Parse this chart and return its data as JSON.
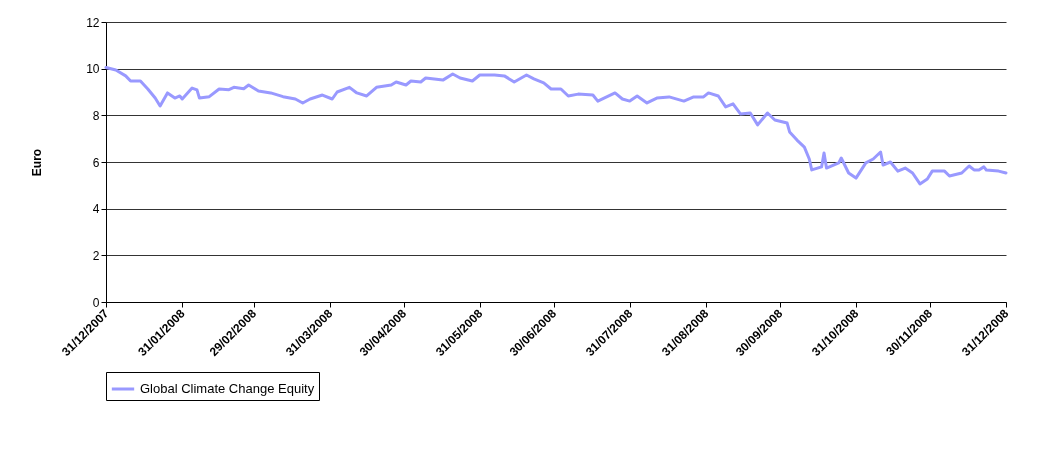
{
  "chart_data": {
    "type": "line",
    "ylabel": "Euro",
    "legend": "bottom",
    "grid": "y",
    "line_style": "solid",
    "xlim": [
      "2007-12-31",
      "2008-12-31"
    ],
    "xticks": [
      {
        "value": "2007-12-31",
        "label": "31/12/2007"
      },
      {
        "value": "2008-01-31",
        "label": "31/01/2008"
      },
      {
        "value": "2008-02-29",
        "label": "29/02/2008"
      },
      {
        "value": "2008-03-31",
        "label": "31/03/2008"
      },
      {
        "value": "2008-04-30",
        "label": "30/04/2008"
      },
      {
        "value": "2008-05-31",
        "label": "31/05/2008"
      },
      {
        "value": "2008-06-30",
        "label": "30/06/2008"
      },
      {
        "value": "2008-07-31",
        "label": "31/07/2008"
      },
      {
        "value": "2008-08-31",
        "label": "31/08/2008"
      },
      {
        "value": "2008-09-30",
        "label": "30/09/2008"
      },
      {
        "value": "2008-10-31",
        "label": "31/10/2008"
      },
      {
        "value": "2008-11-30",
        "label": "30/11/2008"
      },
      {
        "value": "2008-12-31",
        "label": "31/12/2008"
      }
    ],
    "ylim": [
      0,
      12
    ],
    "yticks": [
      0,
      2,
      4,
      6,
      8,
      10,
      12
    ],
    "x": [
      "2007-12-31",
      "2008-01-04",
      "2008-01-08",
      "2008-01-10",
      "2008-01-14",
      "2008-01-17",
      "2008-01-20",
      "2008-01-22",
      "2008-01-25",
      "2008-01-28",
      "2008-01-30",
      "2008-01-31",
      "2008-02-04",
      "2008-02-06",
      "2008-02-07",
      "2008-02-11",
      "2008-02-15",
      "2008-02-19",
      "2008-02-21",
      "2008-02-25",
      "2008-02-27",
      "2008-03-02",
      "2008-03-07",
      "2008-03-12",
      "2008-03-17",
      "2008-03-20",
      "2008-03-23",
      "2008-03-28",
      "2008-04-01",
      "2008-04-03",
      "2008-04-08",
      "2008-04-11",
      "2008-04-15",
      "2008-04-19",
      "2008-04-25",
      "2008-04-27",
      "2008-05-01",
      "2008-05-03",
      "2008-05-07",
      "2008-05-09",
      "2008-05-16",
      "2008-05-20",
      "2008-05-23",
      "2008-05-28",
      "2008-05-31",
      "2008-06-06",
      "2008-06-10",
      "2008-06-14",
      "2008-06-19",
      "2008-06-22",
      "2008-06-26",
      "2008-06-29",
      "2008-07-03",
      "2008-07-06",
      "2008-07-10",
      "2008-07-16",
      "2008-07-18",
      "2008-07-25",
      "2008-07-28",
      "2008-07-31",
      "2008-08-03",
      "2008-08-07",
      "2008-08-11",
      "2008-08-16",
      "2008-08-22",
      "2008-08-26",
      "2008-08-30",
      "2008-09-01",
      "2008-09-05",
      "2008-09-08",
      "2008-09-11",
      "2008-09-14",
      "2008-09-18",
      "2008-09-21",
      "2008-09-25",
      "2008-09-28",
      "2008-10-03",
      "2008-10-04",
      "2008-10-07",
      "2008-10-10",
      "2008-10-12",
      "2008-10-13",
      "2008-10-17",
      "2008-10-18",
      "2008-10-19",
      "2008-10-24",
      "2008-10-25",
      "2008-10-28",
      "2008-10-31",
      "2008-11-04",
      "2008-11-07",
      "2008-11-10",
      "2008-11-11",
      "2008-11-14",
      "2008-11-17",
      "2008-11-20",
      "2008-11-23",
      "2008-11-26",
      "2008-11-29",
      "2008-12-01",
      "2008-12-06",
      "2008-12-08",
      "2008-12-13",
      "2008-12-16",
      "2008-12-18",
      "2008-12-20",
      "2008-12-22",
      "2008-12-23",
      "2008-12-28",
      "2008-12-31"
    ],
    "series": [
      {
        "name": "Global Climate Change Equity",
        "color": "#9999ff",
        "values": [
          10.05,
          9.94,
          9.69,
          9.47,
          9.47,
          9.13,
          8.74,
          8.4,
          8.96,
          8.74,
          8.83,
          8.7,
          9.17,
          9.09,
          8.74,
          8.8,
          9.13,
          9.1,
          9.2,
          9.14,
          9.3,
          9.04,
          8.96,
          8.8,
          8.7,
          8.53,
          8.7,
          8.87,
          8.7,
          9.0,
          9.2,
          8.96,
          8.83,
          9.2,
          9.3,
          9.43,
          9.3,
          9.47,
          9.43,
          9.6,
          9.51,
          9.77,
          9.6,
          9.47,
          9.73,
          9.73,
          9.69,
          9.43,
          9.73,
          9.56,
          9.39,
          9.13,
          9.13,
          8.83,
          8.91,
          8.87,
          8.61,
          8.96,
          8.7,
          8.61,
          8.83,
          8.53,
          8.74,
          8.79,
          8.61,
          8.79,
          8.79,
          8.96,
          8.83,
          8.36,
          8.49,
          8.06,
          8.1,
          7.59,
          8.1,
          7.8,
          7.67,
          7.29,
          6.94,
          6.64,
          6.13,
          5.66,
          5.79,
          6.39,
          5.74,
          5.96,
          6.17,
          5.53,
          5.31,
          5.96,
          6.13,
          6.43,
          5.87,
          6.0,
          5.61,
          5.74,
          5.53,
          5.06,
          5.27,
          5.61,
          5.61,
          5.4,
          5.53,
          5.83,
          5.66,
          5.66,
          5.79,
          5.66,
          5.61,
          5.53
        ]
      }
    ]
  }
}
